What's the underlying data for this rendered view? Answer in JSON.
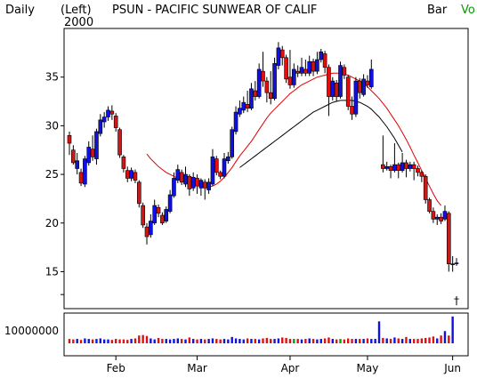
{
  "header": {
    "period": "Daily",
    "scale": "(Left)",
    "year": "2000",
    "title": "PSUN - PACIFIC SUNWEAR OF CALIF",
    "bar_label": "Bar",
    "vol_label": "Vo"
  },
  "colors": {
    "up": "#1010e0",
    "down": "#e01010",
    "ma_short": "#e00000",
    "ma_long": "#000000",
    "vol_other": "#00a000"
  },
  "chart_data": {
    "type": "candlestick",
    "title": "PSUN - PACIFIC SUNWEAR OF CALIF",
    "price_axis": {
      "ticks": [
        15,
        20,
        25,
        30,
        35
      ],
      "ylim": [
        11.2,
        40
      ]
    },
    "x_ticks": [
      "Feb",
      "Mar",
      "Apr",
      "May",
      "Jun"
    ],
    "x_tick_index": [
      12,
      33,
      57,
      77,
      99
    ],
    "bars": [
      [
        29,
        28.2,
        29.4,
        27.0
      ],
      [
        27.5,
        26.2,
        28.0,
        26.0
      ],
      [
        25.6,
        26.4,
        27.2,
        25.0
      ],
      [
        25.2,
        24.1,
        25.6,
        23.8
      ],
      [
        24.0,
        26.6,
        26.9,
        23.7
      ],
      [
        26.2,
        27.8,
        28.4,
        25.9
      ],
      [
        27.6,
        26.8,
        29.0,
        26.4
      ],
      [
        26.6,
        29.4,
        29.7,
        26.0
      ],
      [
        29.2,
        30.6,
        31.2,
        28.9
      ],
      [
        30.4,
        30.9,
        31.4,
        29.8
      ],
      [
        30.9,
        31.6,
        32.0,
        30.5
      ],
      [
        31.5,
        31.2,
        32.1,
        30.6
      ],
      [
        31.0,
        29.8,
        31.3,
        29.4
      ],
      [
        29.6,
        27.0,
        29.8,
        26.7
      ],
      [
        26.8,
        25.6,
        27.0,
        25.2
      ],
      [
        25.4,
        24.6,
        25.8,
        24.2
      ],
      [
        24.6,
        25.4,
        25.7,
        24.3
      ],
      [
        25.2,
        24.4,
        25.5,
        24.1
      ],
      [
        24.2,
        22.0,
        24.4,
        21.6
      ],
      [
        21.8,
        19.8,
        22.1,
        19.5
      ],
      [
        19.6,
        18.6,
        20.0,
        17.8
      ],
      [
        18.8,
        20.2,
        20.9,
        18.5
      ],
      [
        20.0,
        21.8,
        22.4,
        19.8
      ],
      [
        21.6,
        21.0,
        21.9,
        20.6
      ],
      [
        20.8,
        20.0,
        21.1,
        19.8
      ],
      [
        20.2,
        21.4,
        21.7,
        20.0
      ],
      [
        21.2,
        22.9,
        23.4,
        21.0
      ],
      [
        22.8,
        24.6,
        25.2,
        22.6
      ],
      [
        24.4,
        25.5,
        26.0,
        24.1
      ],
      [
        25.2,
        24.2,
        25.5,
        23.9
      ],
      [
        24.0,
        25.0,
        25.8,
        23.7
      ],
      [
        24.8,
        23.5,
        25.0,
        22.8
      ],
      [
        23.6,
        24.7,
        25.2,
        23.3
      ],
      [
        24.6,
        23.8,
        25.0,
        23.0
      ],
      [
        23.6,
        24.4,
        24.6,
        22.8
      ],
      [
        24.2,
        23.6,
        24.5,
        22.4
      ],
      [
        23.4,
        24.2,
        24.6,
        23.0
      ],
      [
        24.0,
        26.8,
        27.6,
        23.8
      ],
      [
        26.6,
        25.2,
        26.9,
        24.9
      ],
      [
        25.2,
        24.8,
        25.4,
        24.5
      ],
      [
        24.8,
        26.6,
        27.2,
        24.6
      ],
      [
        26.4,
        26.8,
        27.3,
        26.1
      ],
      [
        26.8,
        29.6,
        29.9,
        26.6
      ],
      [
        29.4,
        31.4,
        32.0,
        29.1
      ],
      [
        31.2,
        31.8,
        32.6,
        30.9
      ],
      [
        31.6,
        32.4,
        33.0,
        31.3
      ],
      [
        32.2,
        31.8,
        33.6,
        31.4
      ],
      [
        31.8,
        33.8,
        34.4,
        31.6
      ],
      [
        33.6,
        33.0,
        34.6,
        32.6
      ],
      [
        33.0,
        35.8,
        36.4,
        32.8
      ],
      [
        35.6,
        34.6,
        37.6,
        34.0
      ],
      [
        34.6,
        33.4,
        35.0,
        32.4
      ],
      [
        33.4,
        32.8,
        35.6,
        32.2
      ],
      [
        32.8,
        36.4,
        37.0,
        32.6
      ],
      [
        36.2,
        38.0,
        38.6,
        35.8
      ],
      [
        37.8,
        37.0,
        38.2,
        36.2
      ],
      [
        37.0,
        34.8,
        37.3,
        34.4
      ],
      [
        35.0,
        34.2,
        37.8,
        33.8
      ],
      [
        34.2,
        35.8,
        36.4,
        33.9
      ],
      [
        35.6,
        35.4,
        36.2,
        35.0
      ],
      [
        35.4,
        36.0,
        37.0,
        35.1
      ],
      [
        35.8,
        35.4,
        36.8,
        35.1
      ],
      [
        35.4,
        36.6,
        37.2,
        35.1
      ],
      [
        36.6,
        35.6,
        36.9,
        35.1
      ],
      [
        35.6,
        36.8,
        37.6,
        35.3
      ],
      [
        36.8,
        37.6,
        37.9,
        36.5
      ],
      [
        37.4,
        36.0,
        37.7,
        35.4
      ],
      [
        36.0,
        33.0,
        36.3,
        31.0
      ],
      [
        33.0,
        34.6,
        35.0,
        32.6
      ],
      [
        34.4,
        33.0,
        34.7,
        32.5
      ],
      [
        33.0,
        36.2,
        36.6,
        32.8
      ],
      [
        36.0,
        35.2,
        36.3,
        34.8
      ],
      [
        35.0,
        32.0,
        35.2,
        31.6
      ],
      [
        32.0,
        31.2,
        33.0,
        30.6
      ],
      [
        31.2,
        34.6,
        35.0,
        30.9
      ],
      [
        34.6,
        33.4,
        34.9,
        32.8
      ],
      [
        33.2,
        34.8,
        35.3,
        33.0
      ],
      [
        34.6,
        34.2,
        35.2,
        33.9
      ],
      [
        34.0,
        35.8,
        36.8,
        33.8
      ],
      null,
      null,
      [
        26.0,
        25.6,
        29.0,
        25.2
      ],
      [
        25.6,
        25.8,
        26.3,
        25.4
      ],
      [
        25.8,
        25.4,
        26.0,
        24.6
      ],
      [
        25.4,
        26.0,
        28.2,
        25.2
      ],
      [
        26.0,
        25.4,
        26.2,
        24.6
      ],
      [
        25.4,
        26.2,
        27.2,
        25.2
      ],
      [
        26.2,
        25.6,
        26.5,
        24.7
      ],
      [
        25.6,
        26.0,
        26.3,
        25.3
      ],
      [
        26.0,
        25.6,
        26.3,
        24.4
      ],
      [
        25.6,
        25.2,
        25.9,
        24.8
      ],
      [
        25.2,
        24.8,
        25.4,
        24.2
      ],
      [
        24.8,
        22.4,
        25.0,
        22.0
      ],
      [
        22.4,
        21.2,
        22.6,
        21.0
      ],
      [
        21.2,
        20.4,
        21.6,
        20.0
      ],
      [
        20.4,
        20.6,
        20.9,
        19.8
      ],
      [
        20.6,
        20.2,
        21.0,
        19.9
      ],
      [
        20.4,
        21.2,
        21.8,
        20.2
      ],
      [
        21.0,
        15.8,
        21.2,
        15.0
      ],
      [
        15.8,
        15.8,
        16.6,
        15.0
      ],
      [
        15.9,
        15.9,
        16.4,
        15.6
      ]
    ],
    "series": [
      {
        "name": "",
        "color": "#e00000",
        "start_index": 20,
        "values": [
          27.1,
          26.6,
          26.2,
          25.8,
          25.5,
          25.2,
          25.0,
          24.8,
          24.6,
          24.5,
          24.3,
          24.1,
          24.0,
          23.9,
          23.8,
          23.7,
          23.7,
          23.8,
          24.0,
          24.3,
          24.7,
          25.2,
          25.7,
          26.3,
          26.9,
          27.4,
          27.9,
          28.4,
          29.0,
          29.6,
          30.2,
          30.8,
          31.3,
          31.7,
          32.1,
          32.5,
          32.9,
          33.3,
          33.6,
          33.9,
          34.2,
          34.4,
          34.6,
          34.8,
          35.0,
          35.1,
          35.2,
          35.3,
          35.4,
          35.4,
          35.4,
          35.3,
          35.2,
          35.0,
          34.8,
          34.6,
          34.3,
          34.0,
          33.6,
          33.2,
          32.8,
          32.3,
          31.8,
          31.2,
          30.6,
          30.0,
          29.3,
          28.6,
          27.8,
          27.0,
          26.2,
          25.4,
          24.6,
          23.8,
          23.0,
          22.3,
          21.8
        ]
      },
      {
        "name": "",
        "color": "#000000",
        "start_index": 44,
        "values": [
          25.7,
          26.0,
          26.3,
          26.6,
          26.9,
          27.2,
          27.5,
          27.8,
          28.1,
          28.4,
          28.7,
          29.0,
          29.3,
          29.6,
          29.9,
          30.2,
          30.5,
          30.8,
          31.1,
          31.4,
          31.6,
          31.8,
          32.0,
          32.2,
          32.4,
          32.5,
          32.6,
          32.6,
          32.6,
          32.6,
          32.5,
          32.4,
          32.2,
          32.0,
          31.7,
          31.3,
          30.9,
          30.4,
          29.9,
          29.3,
          28.7,
          28.0,
          27.3
        ],
        "x_offset_end": 0
      }
    ],
    "volume": {
      "label": "10000000",
      "tick_value": 10000000,
      "values": [
        1,
        1,
        1,
        1,
        1,
        1,
        1,
        1,
        1,
        1,
        1,
        1,
        1,
        1,
        1,
        1,
        1,
        1,
        1,
        1,
        1,
        1,
        1,
        1,
        1,
        1,
        1,
        1,
        1,
        1,
        1,
        1,
        1,
        1,
        1,
        1,
        1,
        1,
        1,
        1,
        1,
        1,
        1,
        1,
        1,
        1,
        1,
        1,
        1,
        1,
        1,
        1,
        1,
        1,
        1,
        1,
        1,
        1,
        1,
        1,
        1,
        1,
        1,
        1,
        1,
        1,
        1,
        1,
        1,
        1,
        1,
        1,
        1,
        1,
        1,
        1,
        1,
        1,
        1,
        1,
        1,
        1,
        1,
        1,
        1,
        1,
        1,
        1,
        1,
        1,
        1,
        1,
        1,
        1,
        1,
        1,
        1,
        1,
        1,
        1
      ],
      "millions": [
        0.9,
        0.8,
        0.9,
        0.7,
        1.0,
        0.9,
        0.8,
        0.9,
        1.0,
        0.8,
        0.8,
        0.7,
        0.9,
        0.8,
        0.8,
        0.7,
        0.9,
        1.0,
        1.6,
        1.7,
        1.5,
        1.0,
        0.8,
        1.1,
        0.9,
        0.9,
        0.8,
        0.9,
        1.0,
        0.9,
        0.8,
        1.2,
        0.9,
        0.8,
        0.9,
        0.8,
        0.9,
        1.0,
        0.9,
        0.8,
        0.9,
        0.8,
        1.3,
        1.0,
        0.9,
        0.8,
        1.0,
        0.9,
        0.9,
        0.8,
        1.0,
        1.1,
        0.9,
        0.9,
        1.0,
        1.2,
        1.1,
        0.9,
        0.9,
        0.9,
        0.8,
        0.9,
        1.0,
        0.9,
        0.8,
        0.9,
        1.0,
        1.2,
        0.9,
        0.8,
        0.9,
        0.8,
        1.0,
        0.9,
        0.9,
        0.9,
        0.9,
        1.0,
        0.9,
        0.9,
        4.5,
        1.1,
        1.0,
        0.9,
        1.2,
        1.0,
        0.9,
        1.3,
        0.9,
        0.9,
        0.9,
        1.0,
        1.1,
        1.2,
        1.4,
        1.0,
        1.6,
        2.5,
        1.6,
        5.5
      ]
    },
    "marker": "†"
  }
}
